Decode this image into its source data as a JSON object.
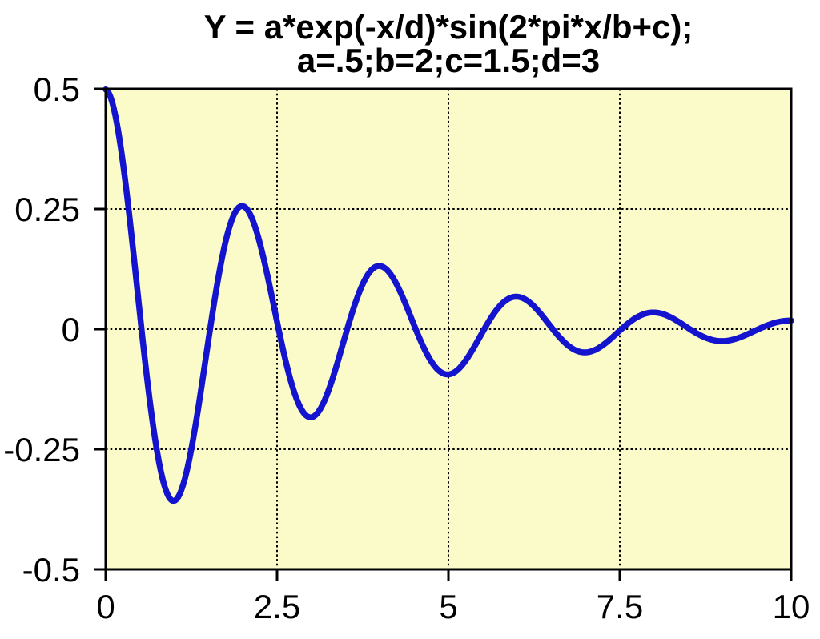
{
  "chart_data": {
    "type": "line",
    "title_line1": "Y = a*exp(-x/d)*sin(2*pi*x/b+c);",
    "title_line2": "a=.5;b=2;c=1.5;d=3",
    "formula": "y = a*exp(-x/d)*sin(2*pi*x/b + c)",
    "params": {
      "a": 0.5,
      "b": 2,
      "c": 1.5,
      "d": 3
    },
    "x_range": [
      0,
      10
    ],
    "y_range": [
      -0.5,
      0.5
    ],
    "x_ticks": [
      {
        "value": 0,
        "label": "0"
      },
      {
        "value": 2.5,
        "label": "2.5"
      },
      {
        "value": 5,
        "label": "5"
      },
      {
        "value": 7.5,
        "label": "7.5"
      },
      {
        "value": 10,
        "label": "10"
      }
    ],
    "y_ticks": [
      {
        "value": 0.5,
        "label": "0.5"
      },
      {
        "value": 0.25,
        "label": "0.25"
      },
      {
        "value": 0,
        "label": "0"
      },
      {
        "value": -0.25,
        "label": "-0.25"
      },
      {
        "value": -0.5,
        "label": "-0.5"
      }
    ],
    "x_gridlines": [
      2.5,
      5,
      7.5
    ],
    "y_gridlines": [
      0.25,
      0,
      -0.25
    ],
    "grid": true,
    "legend_position": "none",
    "sample_step": 0.02,
    "key_points": [
      {
        "x": 0,
        "y": 0.499
      },
      {
        "x": 0.989,
        "y": -0.358
      },
      {
        "x": 1.989,
        "y": 0.256
      },
      {
        "x": 2.989,
        "y": -0.184
      },
      {
        "x": 3.989,
        "y": 0.132
      },
      {
        "x": 4.989,
        "y": -0.094
      },
      {
        "x": 5.989,
        "y": 0.068
      },
      {
        "x": 6.989,
        "y": -0.048
      },
      {
        "x": 7.989,
        "y": 0.035
      },
      {
        "x": 8.989,
        "y": -0.025
      },
      {
        "x": 9.989,
        "y": 0.018
      },
      {
        "x": 10,
        "y": 0.018
      }
    ],
    "colors": {
      "curve": "#1414ce",
      "plot_bg": "#fbfbc9",
      "grid": "#000000",
      "frame": "#000000",
      "text": "#000000"
    }
  }
}
